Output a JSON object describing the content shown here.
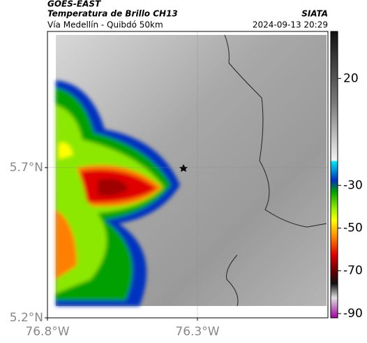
{
  "header": {
    "satellite": "GOES-EAST",
    "product": "Temperatura de Brillo CH13",
    "route": "Vía Medellín - Quibdó 50km",
    "source": "SIATA",
    "timestamp": "2024-09-13 20:29"
  },
  "map": {
    "xlim": [
      -76.8,
      -75.865
    ],
    "ylim": [
      5.2,
      6.153
    ],
    "xticks": [
      {
        "value": -76.8,
        "label": "76.8°W"
      },
      {
        "value": -76.3,
        "label": "76.3°W"
      }
    ],
    "yticks": [
      {
        "value": 5.2,
        "label": "5.2°N"
      },
      {
        "value": 5.7,
        "label": "5.7°N"
      }
    ],
    "grid": true
  },
  "colorbar": {
    "lim": [
      -92,
      42
    ],
    "ticks": [
      20,
      -30,
      -50,
      -70,
      -90
    ]
  }
}
